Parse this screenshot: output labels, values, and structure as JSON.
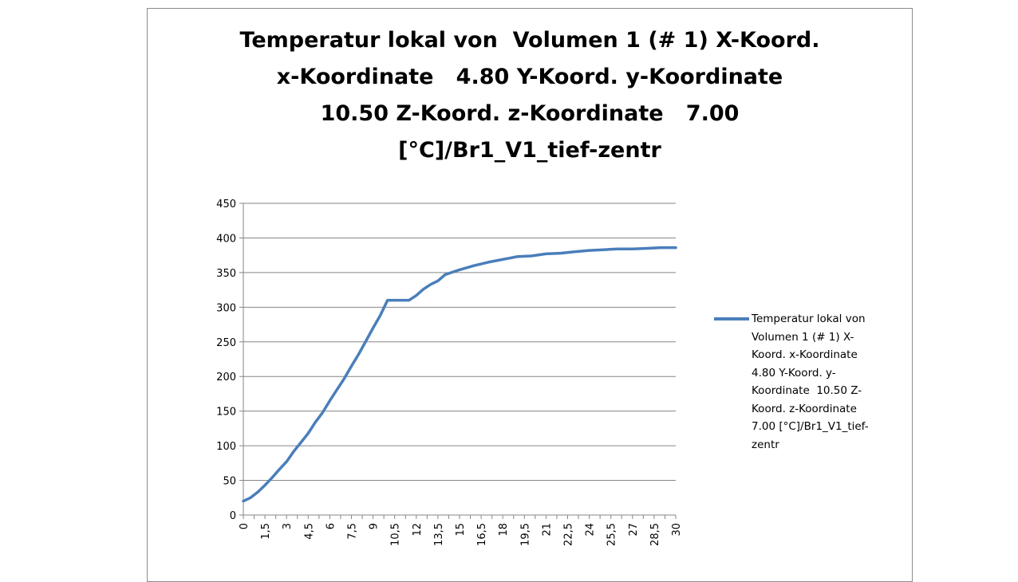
{
  "chart_data": {
    "type": "line",
    "title_lines": [
      "Temperatur lokal von  Volumen 1 (# 1) X-Koord.",
      "x-Koordinate   4.80 Y-Koord. y-Koordinate",
      "10.50 Z-Koord. z-Koordinate   7.00",
      "[°C]/Br1_V1_tief-zentr"
    ],
    "xlabel": "",
    "ylabel": "",
    "ylim": [
      0,
      450
    ],
    "yticks": [
      0,
      50,
      100,
      150,
      200,
      250,
      300,
      350,
      400,
      450
    ],
    "xlim": [
      0,
      30
    ],
    "xticks": [
      "0",
      "1,5",
      "3",
      "4,5",
      "6",
      "7,5",
      "9",
      "10,5",
      "12",
      "13,5",
      "15",
      "16,5",
      "18",
      "19,5",
      "21",
      "22,5",
      "24",
      "25,5",
      "27",
      "28,5",
      "30"
    ],
    "grid": "horizontal",
    "legend_position": "right",
    "series": [
      {
        "name": "Temperatur lokal von Volumen 1 (# 1) X-Koord. x-Koordinate 4.80 Y-Koord. y-Koordinate 10.50 Z-Koord. z-Koordinate 7.00 [°C]/Br1_V1_tief-zentr",
        "legend_lines": [
          "Temperatur lokal von",
          "Volumen 1 (# 1) X-",
          "Koord. x-Koordinate",
          "4.80 Y-Koord. y-",
          "Koordinate  10.50 Z-",
          "Koord. z-Koordinate",
          "7.00 [°C]/Br1_V1_tief-",
          "zentr"
        ],
        "color": "#4a7ebb",
        "x": [
          0,
          0.5,
          1,
          1.5,
          2,
          2.5,
          3,
          3.5,
          4,
          4.5,
          5,
          5.5,
          6,
          6.5,
          7,
          7.5,
          8,
          8.5,
          9,
          9.5,
          10,
          10.5,
          11,
          11.5,
          12,
          12.5,
          13,
          13.5,
          14,
          15,
          16,
          17,
          18,
          19,
          20,
          21,
          22,
          23,
          24,
          25,
          26,
          27,
          28,
          29,
          30
        ],
        "values": [
          20,
          25,
          33,
          43,
          54,
          66,
          77,
          92,
          105,
          118,
          134,
          148,
          165,
          181,
          197,
          215,
          232,
          251,
          270,
          288,
          310,
          310,
          310,
          310,
          317,
          326,
          333,
          338,
          347,
          354,
          360,
          365,
          369,
          373,
          374,
          377,
          378,
          380,
          382,
          383,
          384,
          384,
          385,
          386,
          386
        ]
      }
    ]
  }
}
